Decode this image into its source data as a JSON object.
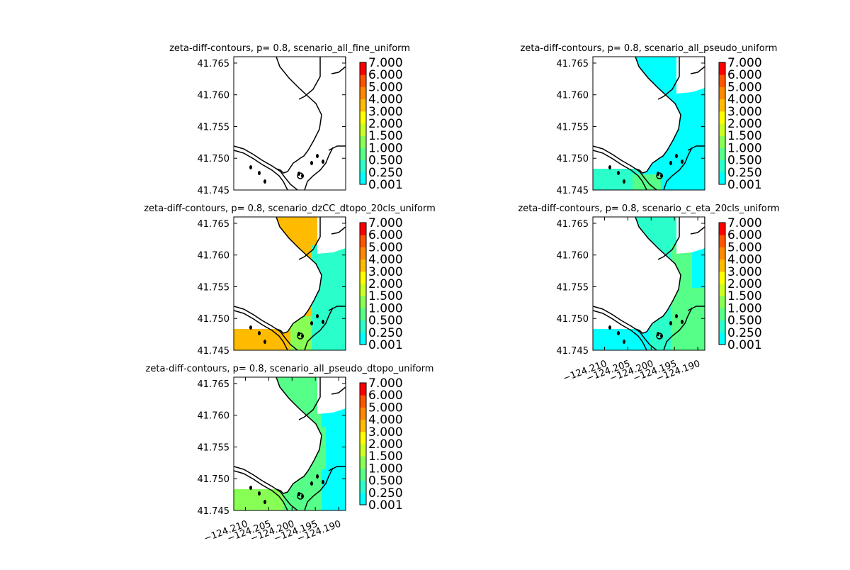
{
  "chart_data": [
    {
      "type": "heatmap",
      "title": "zeta-diff-contours, p= 0.8, scenario_all_fine_uniform",
      "fill": "none",
      "ylim": [
        41.745,
        41.766
      ],
      "xlim": [
        -124.2125,
        -124.1885
      ],
      "yticks": [
        "41.745",
        "41.750",
        "41.755",
        "41.760",
        "41.765"
      ],
      "xticks": [],
      "colorbar": [
        "0.001",
        "0.250",
        "0.500",
        "1.000",
        "1.500",
        "2.000",
        "3.000",
        "4.000",
        "5.000",
        "6.000",
        "7.000"
      ]
    },
    {
      "type": "heatmap",
      "title": "zeta-diff-contours, p= 0.8, scenario_all_pseudo_uniform",
      "fill": "low",
      "ylim": [
        41.745,
        41.766
      ],
      "xlim": [
        -124.2125,
        -124.1885
      ],
      "yticks": [
        "41.745",
        "41.750",
        "41.755",
        "41.760",
        "41.765"
      ],
      "xticks": [],
      "colorbar": [
        "0.001",
        "0.250",
        "0.500",
        "1.000",
        "1.500",
        "2.000",
        "3.000",
        "4.000",
        "5.000",
        "6.000",
        "7.000"
      ]
    },
    {
      "type": "heatmap",
      "title": "zeta-diff-contours, p= 0.8, scenario_dzCC_dtopo_20cls_uniform",
      "fill": "high",
      "ylim": [
        41.745,
        41.766
      ],
      "xlim": [
        -124.2125,
        -124.1885
      ],
      "yticks": [
        "41.745",
        "41.750",
        "41.755",
        "41.760",
        "41.765"
      ],
      "xticks": [],
      "colorbar": [
        "0.001",
        "0.250",
        "0.500",
        "1.000",
        "1.500",
        "2.000",
        "3.000",
        "4.000",
        "5.000",
        "6.000",
        "7.000"
      ]
    },
    {
      "type": "heatmap",
      "title": "zeta-diff-contours, p= 0.8, scenario_c_eta_20cls_uniform",
      "fill": "mid",
      "ylim": [
        41.745,
        41.766
      ],
      "xlim": [
        -124.2125,
        -124.1885
      ],
      "yticks": [
        "41.745",
        "41.750",
        "41.755",
        "41.760",
        "41.765"
      ],
      "xticks": [
        "−124.210",
        "−124.205",
        "−124.200",
        "−124.195",
        "−124.190"
      ],
      "colorbar": [
        "0.001",
        "0.250",
        "0.500",
        "1.000",
        "1.500",
        "2.000",
        "3.000",
        "4.000",
        "5.000",
        "6.000",
        "7.000"
      ]
    },
    {
      "type": "heatmap",
      "title": "zeta-diff-contours, p= 0.8, scenario_all_pseudo_dtopo_uniform",
      "fill": "green",
      "ylim": [
        41.745,
        41.766
      ],
      "xlim": [
        -124.2125,
        -124.1885
      ],
      "yticks": [
        "41.745",
        "41.750",
        "41.755",
        "41.760",
        "41.765"
      ],
      "xticks": [
        "−124.210",
        "−124.205",
        "−124.200",
        "−124.195",
        "−124.190"
      ],
      "colorbar": [
        "0.001",
        "0.250",
        "0.500",
        "1.000",
        "1.500",
        "2.000",
        "3.000",
        "4.000",
        "5.000",
        "6.000",
        "7.000"
      ]
    }
  ],
  "colors": {
    "levels": [
      "#00ffff",
      "#2affcc",
      "#55ff88",
      "#88ff55",
      "#ccff22",
      "#ffff00",
      "#ffbb00",
      "#ff8800",
      "#ff5500",
      "#ff0000"
    ],
    "coastline": "#000000",
    "background": "#ffffff"
  }
}
